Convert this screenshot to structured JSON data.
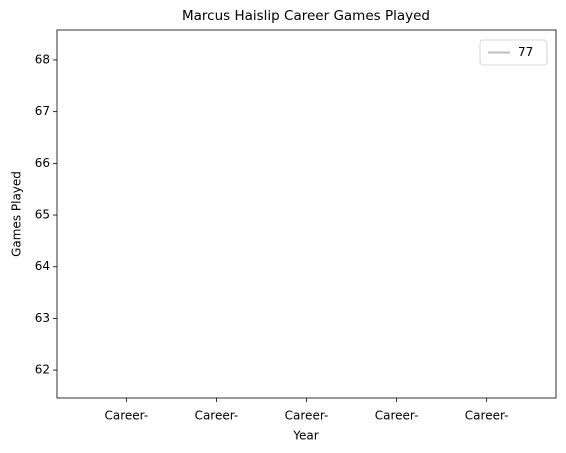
{
  "chart_data": {
    "type": "line",
    "title": "Marcus Haislip Career Games Played",
    "x_label": "Year",
    "y_label": "Games Played",
    "categories": [
      "Career-",
      "Career-",
      "Career-",
      "Career-",
      "Career-"
    ],
    "series": [
      {
        "name": "77",
        "color": "#bfbfbf",
        "values": [
          null,
          null,
          null,
          null,
          null
        ]
      }
    ],
    "ylim": [
      61.46,
      68.58
    ],
    "yticks": [
      62,
      63,
      64,
      65,
      66,
      67,
      68
    ],
    "grid": false,
    "legend": "upper right"
  }
}
